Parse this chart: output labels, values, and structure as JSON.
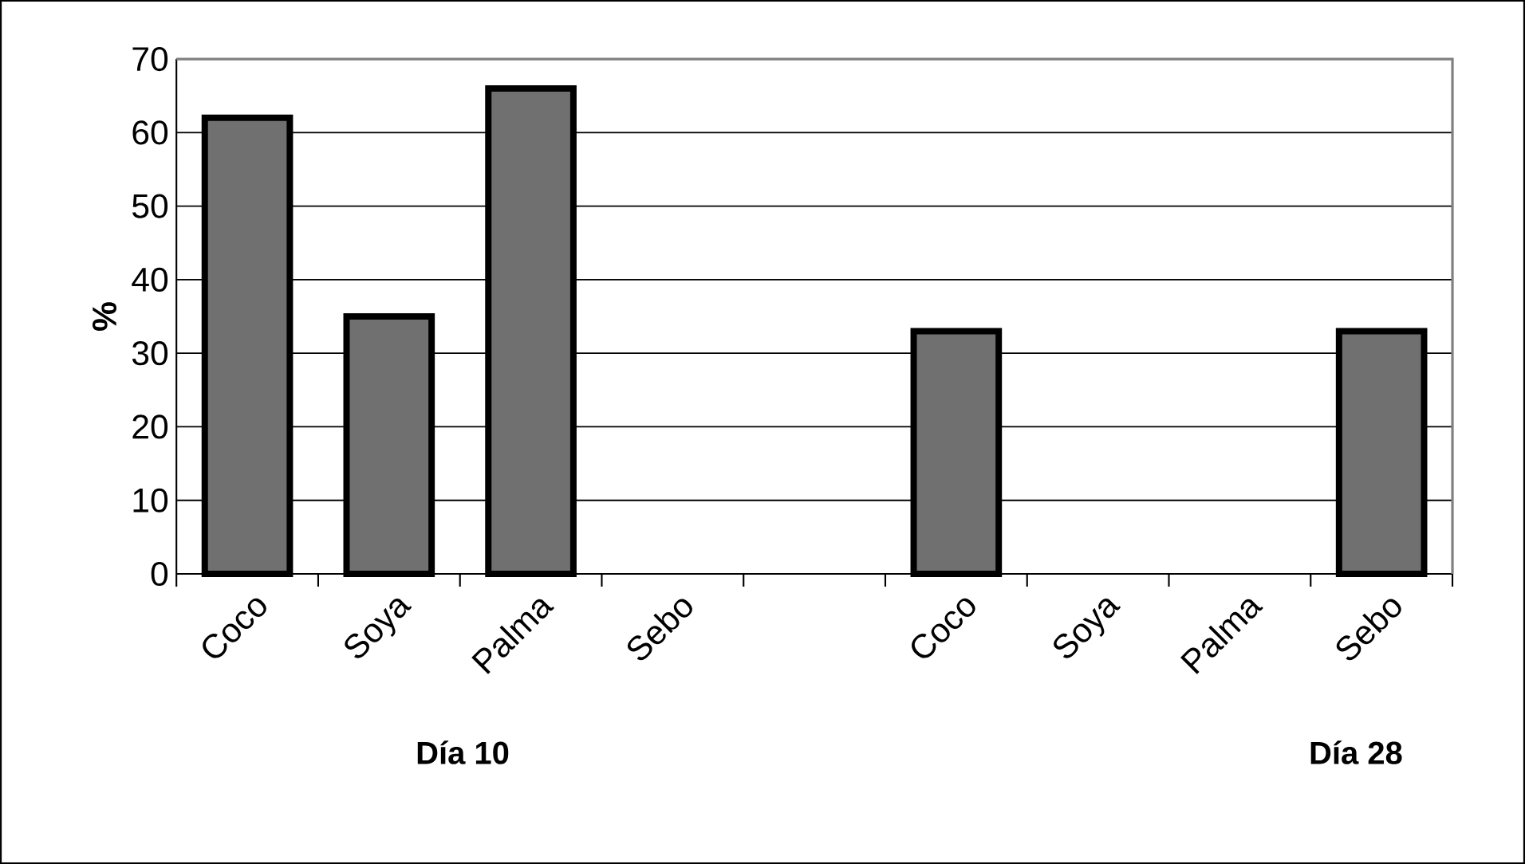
{
  "chart_data": {
    "type": "bar",
    "ylabel": "%",
    "categories": [
      "Coco",
      "Soya",
      "Palma",
      "Sebo",
      null,
      "Coco",
      "Soya",
      "Palma",
      "Sebo"
    ],
    "values": [
      62,
      35,
      66,
      null,
      null,
      33,
      null,
      null,
      33
    ],
    "color": "#707070",
    "ylim": [
      0,
      70
    ],
    "yticks": [
      0,
      10,
      20,
      30,
      40,
      50,
      60,
      70
    ],
    "grid": "y",
    "annotations": [
      "Día 10",
      "Día 28"
    ]
  }
}
